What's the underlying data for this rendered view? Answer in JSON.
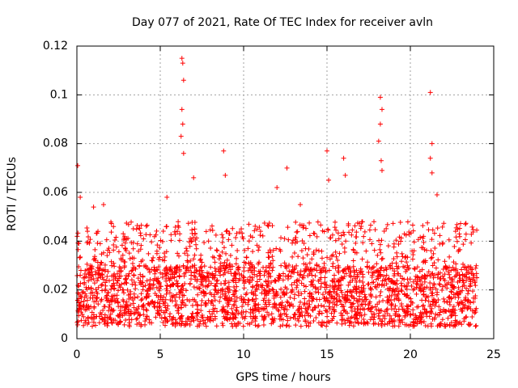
{
  "chart_data": {
    "type": "scatter",
    "title": "Day 077 of 2021, Rate Of TEC Index for receiver avln",
    "xlabel": "GPS time / hours",
    "ylabel": "ROTI / TECUs",
    "xlim": [
      0,
      25
    ],
    "ylim": [
      0,
      0.12
    ],
    "xticks": [
      0,
      5,
      10,
      15,
      20,
      25
    ],
    "yticks": [
      0,
      0.02,
      0.04,
      0.06,
      0.08,
      0.1,
      0.12
    ],
    "xtick_labels": [
      "0",
      "5",
      "10",
      "15",
      "20",
      "25"
    ],
    "ytick_labels": [
      "0",
      "0.02",
      "0.04",
      "0.06",
      "0.08",
      "0.1",
      "0.12"
    ],
    "grid": true,
    "marker": "+",
    "color": "#ff0000",
    "series": [
      {
        "x_range": [
          0,
          24
        ],
        "typical_range": [
          0.005,
          0.03
        ],
        "notable_points": [
          {
            "x": 0.05,
            "y": 0.071
          },
          {
            "x": 0.2,
            "y": 0.058
          },
          {
            "x": 1.0,
            "y": 0.054
          },
          {
            "x": 1.6,
            "y": 0.055
          },
          {
            "x": 5.4,
            "y": 0.058
          },
          {
            "x": 6.3,
            "y": 0.115
          },
          {
            "x": 6.35,
            "y": 0.113
          },
          {
            "x": 6.4,
            "y": 0.106
          },
          {
            "x": 6.3,
            "y": 0.094
          },
          {
            "x": 6.35,
            "y": 0.088
          },
          {
            "x": 6.25,
            "y": 0.083
          },
          {
            "x": 6.4,
            "y": 0.076
          },
          {
            "x": 7.0,
            "y": 0.066
          },
          {
            "x": 8.8,
            "y": 0.077
          },
          {
            "x": 8.9,
            "y": 0.067
          },
          {
            "x": 12.0,
            "y": 0.062
          },
          {
            "x": 12.6,
            "y": 0.07
          },
          {
            "x": 13.4,
            "y": 0.055
          },
          {
            "x": 15.0,
            "y": 0.077
          },
          {
            "x": 15.1,
            "y": 0.065
          },
          {
            "x": 16.0,
            "y": 0.074
          },
          {
            "x": 16.1,
            "y": 0.067
          },
          {
            "x": 18.2,
            "y": 0.099
          },
          {
            "x": 18.3,
            "y": 0.094
          },
          {
            "x": 18.2,
            "y": 0.088
          },
          {
            "x": 18.1,
            "y": 0.081
          },
          {
            "x": 18.25,
            "y": 0.073
          },
          {
            "x": 18.3,
            "y": 0.069
          },
          {
            "x": 21.2,
            "y": 0.101
          },
          {
            "x": 21.3,
            "y": 0.08
          },
          {
            "x": 21.2,
            "y": 0.074
          },
          {
            "x": 21.3,
            "y": 0.068
          },
          {
            "x": 21.6,
            "y": 0.059
          },
          {
            "x": 23.3,
            "y": 0.047
          }
        ]
      }
    ]
  }
}
